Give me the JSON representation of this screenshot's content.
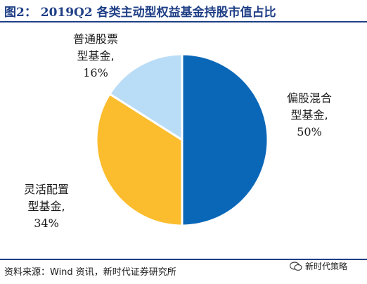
{
  "header": {
    "title": "图2：  2019Q2 各类主动型权益基金持股市值占比"
  },
  "chart_data": {
    "type": "pie",
    "title": "2019Q2 各类主动型权益基金持股市值占比",
    "slices": [
      {
        "label_line1": "偏股混合",
        "label_line2": "型基金,",
        "value": 50,
        "pct_text": "50%",
        "color": "#0a67b8"
      },
      {
        "label_line1": "灵活配置",
        "label_line2": "型基金,",
        "value": 34,
        "pct_text": "34%",
        "color": "#fbbd2e"
      },
      {
        "label_line1": "普通股票",
        "label_line2": "型基金,",
        "value": 16,
        "pct_text": "16%",
        "color": "#b9dcf7"
      }
    ],
    "start_angle_deg": 0,
    "direction": "clockwise"
  },
  "footer": {
    "source": "资料来源：Wind 资讯，新时代证券研究所",
    "watermark": "新时代策略"
  }
}
